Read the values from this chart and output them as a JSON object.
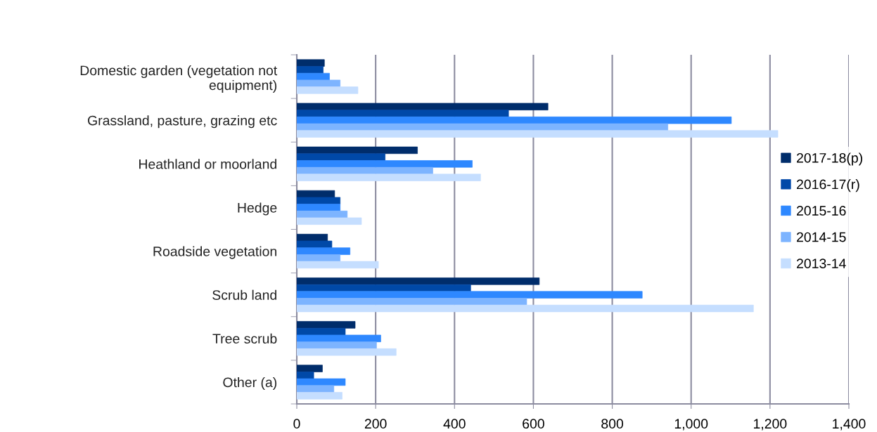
{
  "chart_data": {
    "type": "bar",
    "orientation": "horizontal",
    "categories": [
      "Domestic garden (vegetation not\nequipment)",
      "Grassland, pasture, grazing etc",
      "Heathland or moorland",
      "Hedge",
      "Roadside vegetation",
      "Scrub land",
      "Tree scrub",
      "Other (a)"
    ],
    "series": [
      {
        "name": "2017-18(p)",
        "color": "#002d6b",
        "values": [
          70,
          637,
          306,
          96,
          78,
          615,
          148,
          65
        ]
      },
      {
        "name": "2016-17(r)",
        "color": "#0049a8",
        "values": [
          67,
          537,
          224,
          110,
          89,
          441,
          123,
          43
        ]
      },
      {
        "name": "2015-16",
        "color": "#2e88ff",
        "values": [
          83,
          1102,
          445,
          110,
          135,
          876,
          213,
          123
        ]
      },
      {
        "name": "2014-15",
        "color": "#7db4ff",
        "values": [
          110,
          941,
          345,
          128,
          110,
          583,
          202,
          94
        ]
      },
      {
        "name": "2013-14",
        "color": "#c5deff",
        "values": [
          155,
          1220,
          466,
          164,
          207,
          1158,
          252,
          115
        ]
      }
    ],
    "xlim": [
      0,
      1400
    ],
    "xticks": [
      0,
      200,
      400,
      600,
      800,
      {
        "value": 1000,
        "label": "1,000"
      },
      {
        "value": 1200,
        "label": "1,200"
      },
      {
        "value": 1400,
        "label": "1,400"
      }
    ],
    "grid": "x",
    "legend": "right"
  }
}
